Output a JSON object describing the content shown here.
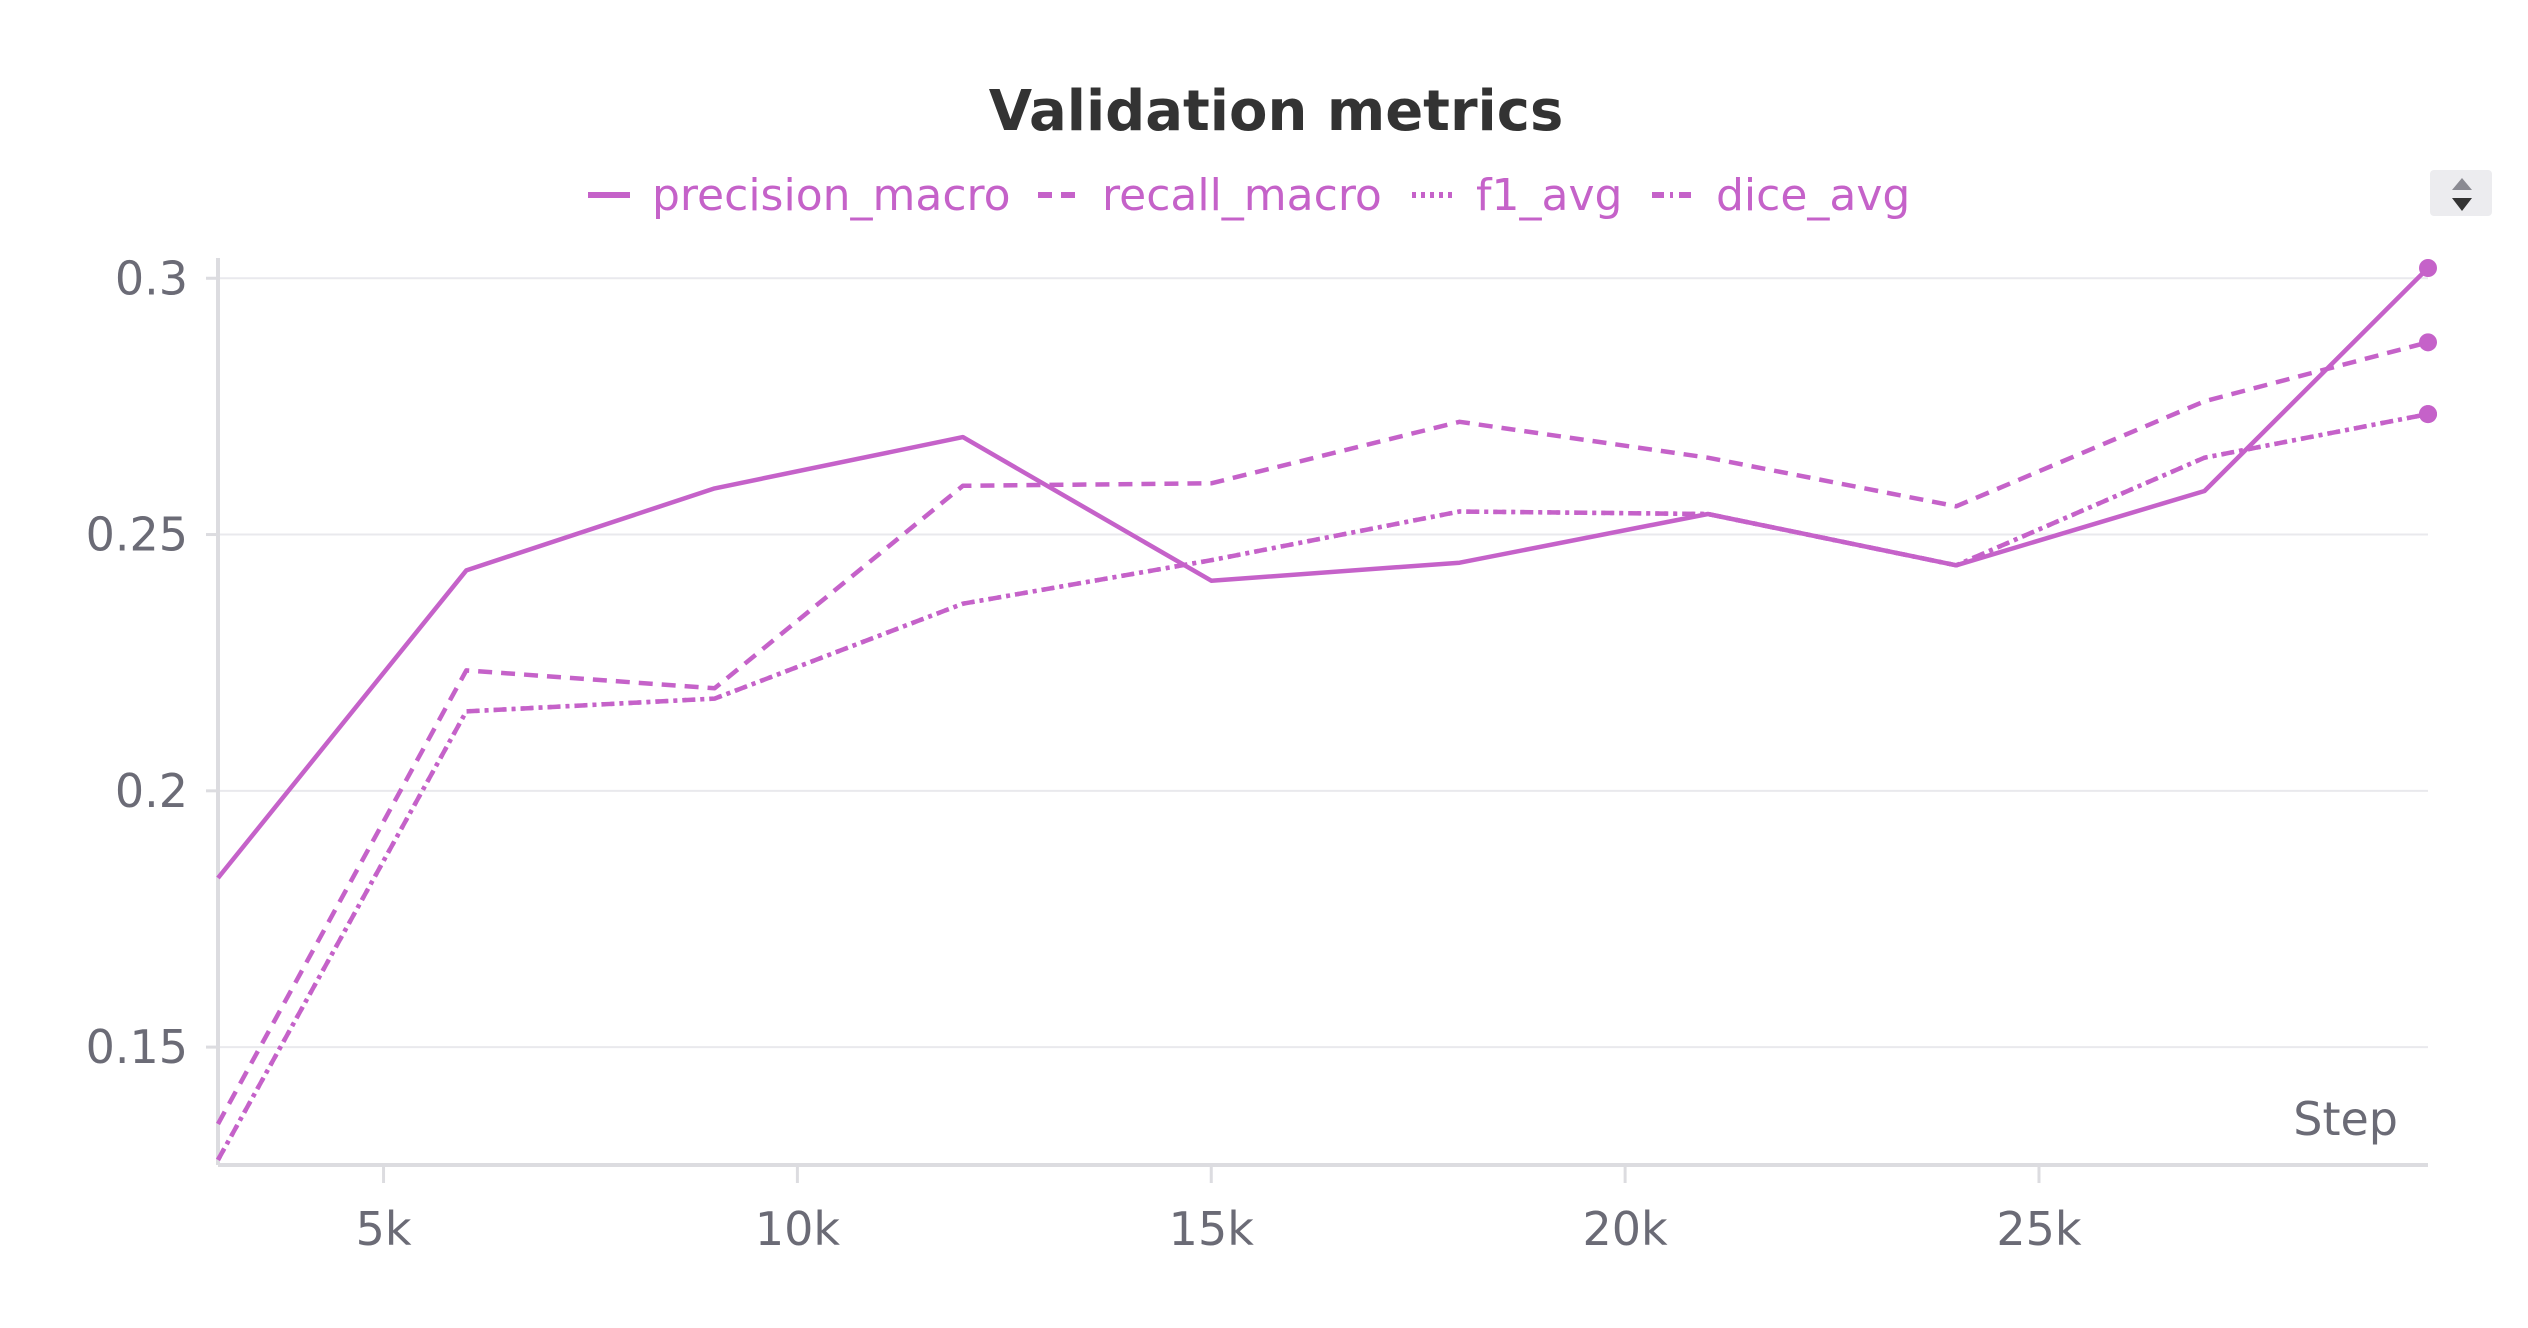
{
  "chart_data": {
    "type": "line",
    "title": "Validation metrics",
    "xlabel": "Step",
    "ylabel": "",
    "xlim": [
      3000,
      29700
    ],
    "ylim": [
      0.127,
      0.302
    ],
    "grid": true,
    "legend_position": "top-center",
    "x_ticks": [
      5000,
      10000,
      15000,
      20000,
      25000
    ],
    "x_tick_labels": [
      "5k",
      "10k",
      "15k",
      "20k",
      "25k"
    ],
    "y_ticks": [
      0.15,
      0.2,
      0.25,
      0.3
    ],
    "y_tick_labels": [
      "0.15",
      "0.2",
      "0.25",
      "0.3"
    ],
    "x": [
      3000,
      6000,
      9000,
      12000,
      15000,
      18000,
      21000,
      24000,
      27000,
      29700
    ],
    "series": [
      {
        "name": "precision_macro",
        "style": "solid",
        "values": [
          0.183,
          0.243,
          0.259,
          0.269,
          0.241,
          0.2445,
          0.254,
          0.244,
          0.2585,
          0.302
        ]
      },
      {
        "name": "recall_macro",
        "style": "dashed",
        "values": [
          0.135,
          0.2235,
          0.22,
          0.2595,
          0.26,
          0.272,
          0.265,
          0.2555,
          0.276,
          0.2875
        ]
      },
      {
        "name": "f1_avg",
        "style": "dotted",
        "values": [
          0.128,
          0.2155,
          0.218,
          0.2365,
          0.245,
          0.2545,
          0.254,
          0.244,
          0.265,
          0.2735
        ]
      },
      {
        "name": "dice_avg",
        "style": "dashdot",
        "values": [
          0.128,
          0.2155,
          0.218,
          0.2365,
          0.245,
          0.2545,
          0.254,
          0.244,
          0.265,
          0.2735
        ]
      }
    ],
    "color": "#c562c9"
  }
}
